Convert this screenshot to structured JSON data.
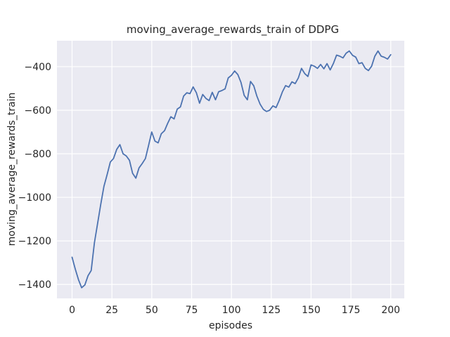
{
  "chart_data": {
    "type": "line",
    "title": "moving_average_rewards_train of DDPG",
    "xlabel": "episodes",
    "ylabel": "moving_average_rewards_train",
    "legend_position": "none",
    "grid": true,
    "x": [
      0,
      2,
      4,
      6,
      8,
      10,
      12,
      14,
      16,
      18,
      20,
      22,
      24,
      26,
      28,
      30,
      32,
      34,
      36,
      38,
      40,
      42,
      44,
      46,
      48,
      50,
      52,
      54,
      56,
      58,
      60,
      62,
      64,
      66,
      68,
      70,
      72,
      74,
      76,
      78,
      80,
      82,
      84,
      86,
      88,
      90,
      92,
      94,
      96,
      98,
      100,
      102,
      104,
      106,
      108,
      110,
      112,
      114,
      116,
      118,
      120,
      122,
      124,
      126,
      128,
      130,
      132,
      134,
      136,
      138,
      140,
      142,
      144,
      146,
      148,
      150,
      152,
      154,
      156,
      158,
      160,
      162,
      164,
      166,
      168,
      170,
      172,
      174,
      176,
      178,
      180,
      182,
      184,
      186,
      188,
      190,
      192,
      194,
      196,
      198,
      200
    ],
    "series": [
      {
        "name": "moving_average_rewards_train",
        "values": [
          -1275,
          -1330,
          -1378,
          -1415,
          -1402,
          -1360,
          -1336,
          -1208,
          -1120,
          -1032,
          -950,
          -895,
          -838,
          -822,
          -780,
          -758,
          -800,
          -810,
          -830,
          -890,
          -912,
          -865,
          -845,
          -822,
          -762,
          -700,
          -742,
          -750,
          -708,
          -694,
          -660,
          -630,
          -640,
          -595,
          -585,
          -535,
          -520,
          -524,
          -493,
          -520,
          -568,
          -528,
          -546,
          -556,
          -518,
          -552,
          -515,
          -510,
          -502,
          -452,
          -440,
          -420,
          -436,
          -472,
          -532,
          -552,
          -468,
          -488,
          -536,
          -572,
          -596,
          -606,
          -600,
          -580,
          -588,
          -555,
          -516,
          -487,
          -494,
          -470,
          -478,
          -452,
          -408,
          -432,
          -445,
          -392,
          -398,
          -408,
          -390,
          -410,
          -386,
          -415,
          -385,
          -347,
          -352,
          -360,
          -338,
          -328,
          -348,
          -356,
          -386,
          -382,
          -408,
          -418,
          -398,
          -352,
          -328,
          -352,
          -357,
          -365,
          -345
        ]
      }
    ],
    "xticks": [
      0,
      25,
      50,
      75,
      100,
      125,
      150,
      175,
      200
    ],
    "yticks": [
      -400,
      -600,
      -800,
      -1000,
      -1200,
      -1400
    ],
    "xtick_labels": [
      "0",
      "25",
      "50",
      "75",
      "100",
      "125",
      "150",
      "175",
      "200"
    ],
    "ytick_labels": [
      "−400",
      "−600",
      "−800",
      "−1000",
      "−1200",
      "−1400"
    ],
    "xlim": [
      -9.5,
      208.5
    ],
    "ylim": [
      -1464,
      -281
    ],
    "colors": {
      "line": "#4c72b0",
      "plot_bg": "#eaeaf2",
      "grid": "#ffffff",
      "figure_bg": "#ffffff",
      "text": "#262626"
    }
  }
}
